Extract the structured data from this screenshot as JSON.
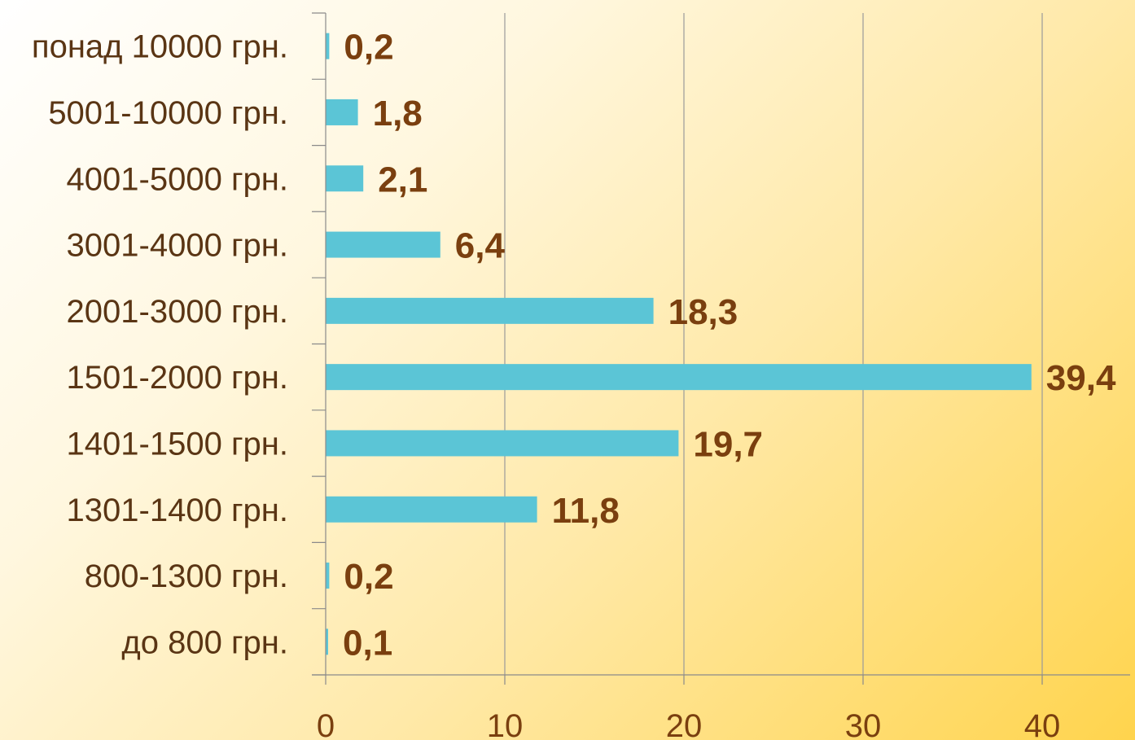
{
  "chart_data": {
    "type": "bar",
    "orientation": "horizontal",
    "categories": [
      "понад 10000 грн.",
      "5001-10000 грн.",
      "4001-5000 грн.",
      "3001-4000 грн.",
      "2001-3000 грн.",
      "1501-2000 грн.",
      "1401-1500 грн.",
      "1301-1400 грн.",
      "800-1300 грн.",
      "до 800 грн."
    ],
    "values": [
      0.2,
      1.8,
      2.1,
      6.4,
      18.3,
      39.4,
      19.7,
      11.8,
      0.2,
      0.1
    ],
    "value_labels": [
      "0,2",
      "1,8",
      "2,1",
      "6,4",
      "18,3",
      "39,4",
      "19,7",
      "11,8",
      "0,2",
      "0,1"
    ],
    "xlim": [
      0,
      44
    ],
    "xticks": [
      0,
      10,
      20,
      30,
      40
    ],
    "xtick_labels": [
      "0",
      "10",
      "20",
      "30",
      "40"
    ],
    "grid": "vertical",
    "legend": "none"
  },
  "colors": {
    "bar": "#5bc5d6",
    "label": "#5a3514",
    "value": "#7a3f0f",
    "axis": "#8a8a8a",
    "grid": "#9a9a9a"
  }
}
